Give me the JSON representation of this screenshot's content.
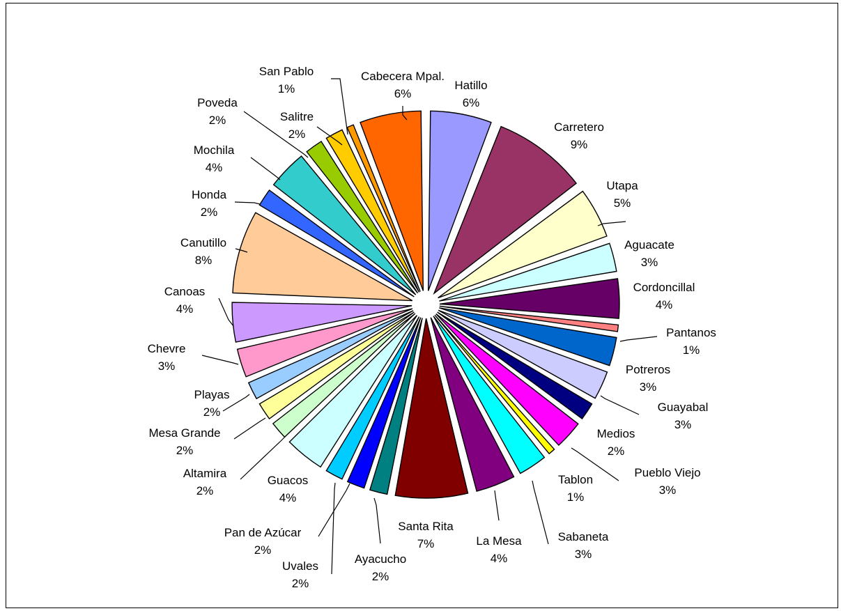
{
  "chart_data": {
    "type": "pie",
    "exploded": true,
    "start_direction": "top",
    "rotation": "clockwise",
    "slices": [
      {
        "label": "Hatillo",
        "value": 6,
        "pct_label": "6%",
        "color": "#9999ff"
      },
      {
        "label": "Carretero",
        "value": 9,
        "pct_label": "9%",
        "color": "#993366"
      },
      {
        "label": "Utapa",
        "value": 5,
        "pct_label": "5%",
        "color": "#ffffcc"
      },
      {
        "label": "Aguacate",
        "value": 3,
        "pct_label": "3%",
        "color": "#ccffff"
      },
      {
        "label": "Cordoncillal",
        "value": 4,
        "pct_label": "4%",
        "color": "#660066"
      },
      {
        "label": "Pantanos",
        "value": 1,
        "pct_label": "1%",
        "color": "#ff8080"
      },
      {
        "label": "Potreros",
        "value": 3,
        "pct_label": "3%",
        "color": "#0066cc"
      },
      {
        "label": "Guayabal",
        "value": 3,
        "pct_label": "3%",
        "color": "#ccccff"
      },
      {
        "label": "Medios",
        "value": 2,
        "pct_label": "2%",
        "color": "#000080"
      },
      {
        "label": "Pueblo Viejo",
        "value": 3,
        "pct_label": "3%",
        "color": "#ff00ff"
      },
      {
        "label": "Tablon",
        "value": 1,
        "pct_label": "1%",
        "color": "#ffff00"
      },
      {
        "label": "Sabaneta",
        "value": 3,
        "pct_label": "3%",
        "color": "#00ffff"
      },
      {
        "label": "La Mesa",
        "value": 4,
        "pct_label": "4%",
        "color": "#800080"
      },
      {
        "label": "Santa Rita",
        "value": 7,
        "pct_label": "7%",
        "color": "#800000"
      },
      {
        "label": "Ayacucho",
        "value": 2,
        "pct_label": "2%",
        "color": "#008080"
      },
      {
        "label": "Uvales",
        "value": 2,
        "pct_label": "2%",
        "color": "#0000ff"
      },
      {
        "label": "Pan de Azúcar",
        "value": 2,
        "pct_label": "2%",
        "color": "#00ccff"
      },
      {
        "label": "Guacos",
        "value": 4,
        "pct_label": "4%",
        "color": "#ccffff"
      },
      {
        "label": "Altamira",
        "value": 2,
        "pct_label": "2%",
        "color": "#ccffcc"
      },
      {
        "label": "Mesa Grande",
        "value": 2,
        "pct_label": "2%",
        "color": "#ffff99"
      },
      {
        "label": "Playas",
        "value": 2,
        "pct_label": "2%",
        "color": "#99ccff"
      },
      {
        "label": "Chevre",
        "value": 3,
        "pct_label": "3%",
        "color": "#ff99cc"
      },
      {
        "label": "Canoas",
        "value": 4,
        "pct_label": "4%",
        "color": "#cc99ff"
      },
      {
        "label": "Canutillo",
        "value": 8,
        "pct_label": "8%",
        "color": "#ffcc99"
      },
      {
        "label": "Honda",
        "value": 2,
        "pct_label": "2%",
        "color": "#3366ff"
      },
      {
        "label": "Mochila",
        "value": 4,
        "pct_label": "4%",
        "color": "#33cccc"
      },
      {
        "label": "Poveda",
        "value": 2,
        "pct_label": "2%",
        "color": "#99cc00"
      },
      {
        "label": "Salitre",
        "value": 2,
        "pct_label": "2%",
        "color": "#ffcc00"
      },
      {
        "label": "San Pablo",
        "value": 1,
        "pct_label": "1%",
        "color": "#ff9900"
      },
      {
        "label": "Cabecera Mpal.",
        "value": 6,
        "pct_label": "6%",
        "color": "#ff6600"
      }
    ]
  }
}
